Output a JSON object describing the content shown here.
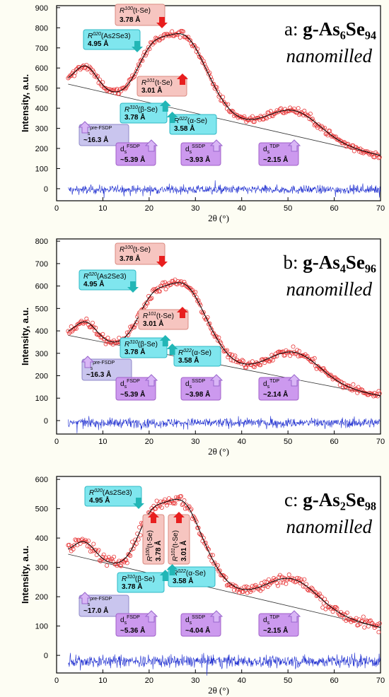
{
  "figure": {
    "y_axis_title": "Intensity, a.u.",
    "x_axis_title": "2θ (°)"
  },
  "colors": {
    "data_marker": "#e8393a",
    "fit_line": "#000000",
    "background_line": "#333333",
    "difference": "#1f2fd0",
    "cyan_box": "#7fe6ee",
    "salmon_box": "#f6c5c0",
    "violet_box": "#cc99ee",
    "lavender_box": "#c9c5ee",
    "arrow_red": "#e81e1e",
    "arrow_teal": "#22b6b6",
    "arrow_violet": "#d9b6f6"
  },
  "chart_data": [
    {
      "type": "scatter",
      "panel_label": "a:",
      "title": "g-As₆Se₉₄",
      "subtitle": "nanomilled",
      "x_ticks": [
        "0",
        "10",
        "20",
        "30",
        "40",
        "50",
        "60",
        "70"
      ],
      "y_ticks": [
        "0",
        "100",
        "200",
        "300",
        "400",
        "500",
        "600",
        "700",
        "800",
        "900"
      ],
      "xlim": [
        0,
        70
      ],
      "ylim": [
        -60,
        910
      ],
      "xlabel": "2θ (°)",
      "ylabel": "Intensity, a.u.",
      "fit_peaks": [
        {
          "center": 6.3,
          "amp": 110,
          "width": 2.4
        },
        {
          "center": 20.5,
          "amp": 220,
          "width": 3.2
        },
        {
          "center": 27.5,
          "amp": 340,
          "width": 4.0
        },
        {
          "center": 33.5,
          "amp": 70,
          "width": 3.5
        },
        {
          "center": 51.5,
          "amp": 125,
          "width": 5.5
        }
      ],
      "baseline": {
        "start": [
          2.5,
          520
        ],
        "end": [
          70,
          165
        ]
      },
      "background_line": {
        "start": [
          2.5,
          520
        ],
        "end": [
          70,
          165
        ]
      },
      "difference_level": -5,
      "annotations": [
        {
          "label": "R100(t-Se)",
          "value": "3.78 Å",
          "color": "salmon",
          "arrow": "red-down",
          "x": 23.5
        },
        {
          "label": "R020(As2Se3)",
          "value": "4.95 Å",
          "color": "cyan",
          "arrow": "teal-down",
          "x": 17.5
        },
        {
          "label": "R101(t-Se)",
          "value": "3.01 Å",
          "color": "salmon",
          "arrow": "red-up",
          "x": 27.2
        },
        {
          "label": "R310(β-Se)",
          "value": "3.78 Å",
          "color": "cyan",
          "arrow": "teal-up",
          "x": 23.5
        },
        {
          "label": "R022(α-Se)",
          "value": "3.58 Å",
          "color": "cyan",
          "arrow": "teal-up",
          "x": 25.0
        },
        {
          "label": "ds pre-FSDP",
          "value": "~16.3 Å",
          "color": "lavender",
          "arrow": "violet-up",
          "x": 6.3
        },
        {
          "label": "ds FSDP",
          "value": "~5.39 Å",
          "color": "violet",
          "arrow": "violet-up",
          "x": 20.5
        },
        {
          "label": "ds SSDP",
          "value": "~3.93 Å",
          "color": "violet",
          "arrow": "violet-up",
          "x": 27.5
        },
        {
          "label": "ds TDP",
          "value": "~2.15 Å",
          "color": "violet",
          "arrow": "violet-up",
          "x": 52.0
        }
      ]
    },
    {
      "type": "scatter",
      "panel_label": "b:",
      "title": "g-As₄Se₉₆",
      "subtitle": "nanomilled",
      "x_ticks": [
        "0",
        "10",
        "20",
        "30",
        "40",
        "50",
        "60",
        "70"
      ],
      "y_ticks": [
        "0",
        "100",
        "200",
        "300",
        "400",
        "500",
        "600",
        "700",
        "800"
      ],
      "xlim": [
        0,
        70
      ],
      "ylim": [
        -60,
        810
      ],
      "xlabel": "2θ (°)",
      "ylabel": "Intensity, a.u.",
      "fit_peaks": [
        {
          "center": 6.3,
          "amp": 75,
          "width": 2.3
        },
        {
          "center": 20.5,
          "amp": 190,
          "width": 3.2
        },
        {
          "center": 27.5,
          "amp": 300,
          "width": 4.0
        },
        {
          "center": 33.5,
          "amp": 55,
          "width": 3.5
        },
        {
          "center": 51.5,
          "amp": 120,
          "width": 5.5
        }
      ],
      "baseline": {
        "start": [
          2.5,
          380
        ],
        "end": [
          70,
          110
        ]
      },
      "background_line": {
        "start": [
          2.5,
          380
        ],
        "end": [
          70,
          110
        ]
      },
      "difference_level": -10,
      "annotations": [
        {
          "label": "R100(t-Se)",
          "value": "3.78 Å",
          "color": "salmon",
          "arrow": "red-down",
          "x": 23.5
        },
        {
          "label": "R020(As2Se3)",
          "value": "4.95 Å",
          "color": "cyan",
          "arrow": "teal-down",
          "x": 17.5
        },
        {
          "label": "R101(t-Se)",
          "value": "3.01 Å",
          "color": "salmon",
          "arrow": "red-up",
          "x": 27.2
        },
        {
          "label": "R310(β-Se)",
          "value": "3.78 Å",
          "color": "cyan",
          "arrow": "teal-up",
          "x": 23.5
        },
        {
          "label": "R022(α-Se)",
          "value": "3.58 Å",
          "color": "cyan",
          "arrow": "teal-up",
          "x": 25.0
        },
        {
          "label": "ds pre-FSDP",
          "value": "~16.3 Å",
          "color": "lavender",
          "arrow": "violet-up",
          "x": 6.3
        },
        {
          "label": "ds FSDP",
          "value": "~5.39 Å",
          "color": "violet",
          "arrow": "violet-up",
          "x": 20.5
        },
        {
          "label": "ds SSDP",
          "value": "~3.98 Å",
          "color": "violet",
          "arrow": "violet-up",
          "x": 27.5
        },
        {
          "label": "ds TDP",
          "value": "~2.14 Å",
          "color": "violet",
          "arrow": "violet-up",
          "x": 52.0
        }
      ]
    },
    {
      "type": "scatter",
      "panel_label": "c:",
      "title": "g-As₂Se₉₈",
      "subtitle": "nanomilled",
      "x_ticks": [
        "0",
        "10",
        "20",
        "30",
        "40",
        "50",
        "60",
        "70"
      ],
      "y_ticks": [
        "0",
        "100",
        "200",
        "300",
        "400",
        "500",
        "600"
      ],
      "xlim": [
        0,
        70
      ],
      "ylim": [
        -60,
        610
      ],
      "xlabel": "2θ (°)",
      "ylabel": "Intensity, a.u.",
      "fit_peaks": [
        {
          "center": 6.0,
          "amp": 55,
          "width": 2.3
        },
        {
          "center": 20.3,
          "amp": 160,
          "width": 3.0
        },
        {
          "center": 27.0,
          "amp": 250,
          "width": 3.8
        },
        {
          "center": 33.0,
          "amp": 45,
          "width": 3.5
        },
        {
          "center": 51.0,
          "amp": 95,
          "width": 5.5
        }
      ],
      "baseline": {
        "start": [
          2.5,
          345
        ],
        "end": [
          70,
          95
        ]
      },
      "background_line": {
        "start": [
          2.5,
          345
        ],
        "end": [
          70,
          95
        ]
      },
      "difference_level": -20,
      "annotations": [
        {
          "label": "R020(As2Se3)",
          "value": "4.95 Å",
          "color": "cyan",
          "arrow": "teal-down",
          "x": 17.5
        },
        {
          "label": "R100(t-Se)",
          "value": "3.78 Å",
          "color": "salmon",
          "arrow": "red-up",
          "x": 21.2
        },
        {
          "label": "R101(t-Se)",
          "value": "3.01 Å",
          "color": "salmon",
          "arrow": "red-up",
          "x": 26.5
        },
        {
          "label": "R310(β-Se)",
          "value": "3.78 Å",
          "color": "cyan",
          "arrow": "teal-up",
          "x": 23.5
        },
        {
          "label": "R022(α-Se)",
          "value": "3.58 Å",
          "color": "cyan",
          "arrow": "teal-up",
          "x": 25.0
        },
        {
          "label": "ds pre-FSDP",
          "value": "~17.0 Å",
          "color": "lavender",
          "arrow": "violet-up",
          "x": 6.0
        },
        {
          "label": "ds FSDP",
          "value": "~5.36 Å",
          "color": "violet",
          "arrow": "violet-up",
          "x": 20.3
        },
        {
          "label": "ds SSDP",
          "value": "~4.04 Å",
          "color": "violet",
          "arrow": "violet-up",
          "x": 27.0
        },
        {
          "label": "ds TDP",
          "value": "~2.15 Å",
          "color": "violet",
          "arrow": "violet-up",
          "x": 52.0
        }
      ]
    }
  ]
}
